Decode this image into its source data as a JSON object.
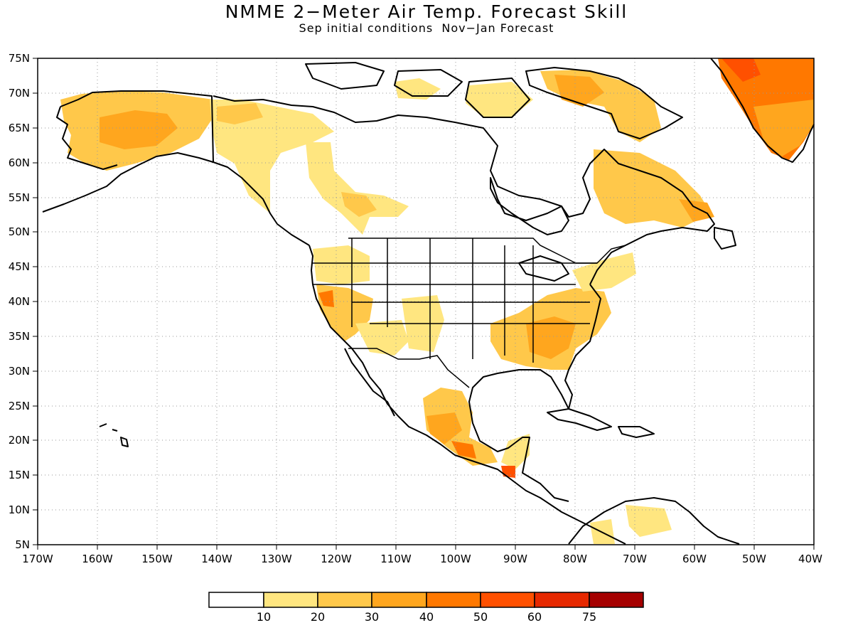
{
  "title": "NMME 2−Meter Air Temp. Forecast Skill",
  "subtitle": "Sep initial conditions  Nov−Jan Forecast",
  "map": {
    "region": "North America",
    "lon_range": [
      -170,
      -40
    ],
    "lat_range": [
      5,
      75
    ],
    "lat_ticks": [
      "75N",
      "70N",
      "65N",
      "60N",
      "55N",
      "50N",
      "45N",
      "40N",
      "35N",
      "30N",
      "25N",
      "20N",
      "15N",
      "10N",
      "5N"
    ],
    "lon_ticks": [
      "170W",
      "160W",
      "150W",
      "140W",
      "130W",
      "120W",
      "110W",
      "100W",
      "90W",
      "80W",
      "70W",
      "60W",
      "50W",
      "40W"
    ],
    "grid": "dotted",
    "features": [
      "coastlines",
      "country borders",
      "US state borders"
    ]
  },
  "colorbar": {
    "labels": [
      "10",
      "20",
      "30",
      "40",
      "50",
      "60",
      "75"
    ],
    "colors": [
      "#ffffff",
      "#ffe680",
      "#ffc84a",
      "#ffa61e",
      "#ff7800",
      "#ff5000",
      "#e62800",
      "#a50000"
    ]
  }
}
